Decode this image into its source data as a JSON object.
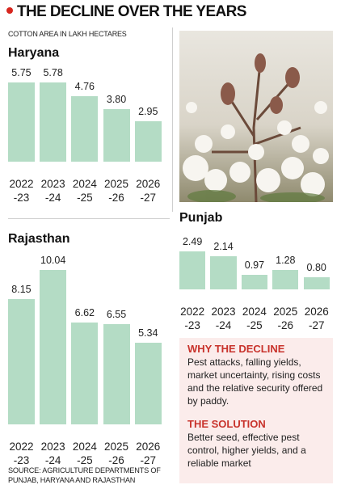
{
  "header": {
    "title": "THE DECLINE OVER THE YEARS",
    "subtitle": "COTTON AREA IN LAKH HECTARES"
  },
  "chart_data": [
    {
      "type": "bar",
      "title": "Haryana",
      "categories": [
        "2022\n-23",
        "2023\n-24",
        "2024\n-25",
        "2025\n-26",
        "2026\n-27"
      ],
      "values": [
        5.75,
        5.78,
        4.76,
        3.8,
        2.95
      ],
      "value_labels": [
        "5.75",
        "5.78",
        "4.76",
        "3.80",
        "2.95"
      ],
      "color": "#b4dcc5"
    },
    {
      "type": "bar",
      "title": "Rajasthan",
      "categories": [
        "2022\n-23",
        "2023\n-24",
        "2024\n-25",
        "2025\n-26",
        "2026\n-27"
      ],
      "values": [
        8.15,
        10.04,
        6.62,
        6.55,
        5.34
      ],
      "value_labels": [
        "8.15",
        "10.04",
        "6.62",
        "6.55",
        "5.34"
      ],
      "color": "#b4dcc5"
    },
    {
      "type": "bar",
      "title": "Punjab",
      "categories": [
        "2022\n-23",
        "2023\n-24",
        "2024\n-25",
        "2025\n-26",
        "2026\n-27"
      ],
      "values": [
        2.49,
        2.14,
        0.97,
        1.28,
        0.8
      ],
      "value_labels": [
        "2.49",
        "2.14",
        "0.97",
        "1.28",
        "0.80"
      ],
      "color": "#b4dcc5"
    }
  ],
  "panel": {
    "sections": [
      {
        "heading": "WHY THE DECLINE",
        "text": "Pest attacks, falling yields, market uncertainty, rising costs and the relative security offered by paddy."
      },
      {
        "heading": "THE SOLUTION",
        "text": "Better seed, effective pest control, higher yields, and a reliable market"
      }
    ]
  },
  "source": "SOURCE: AGRICULTURE DEPARTMENTS OF PUNJAB, HARYANA AND RAJASTHAN"
}
